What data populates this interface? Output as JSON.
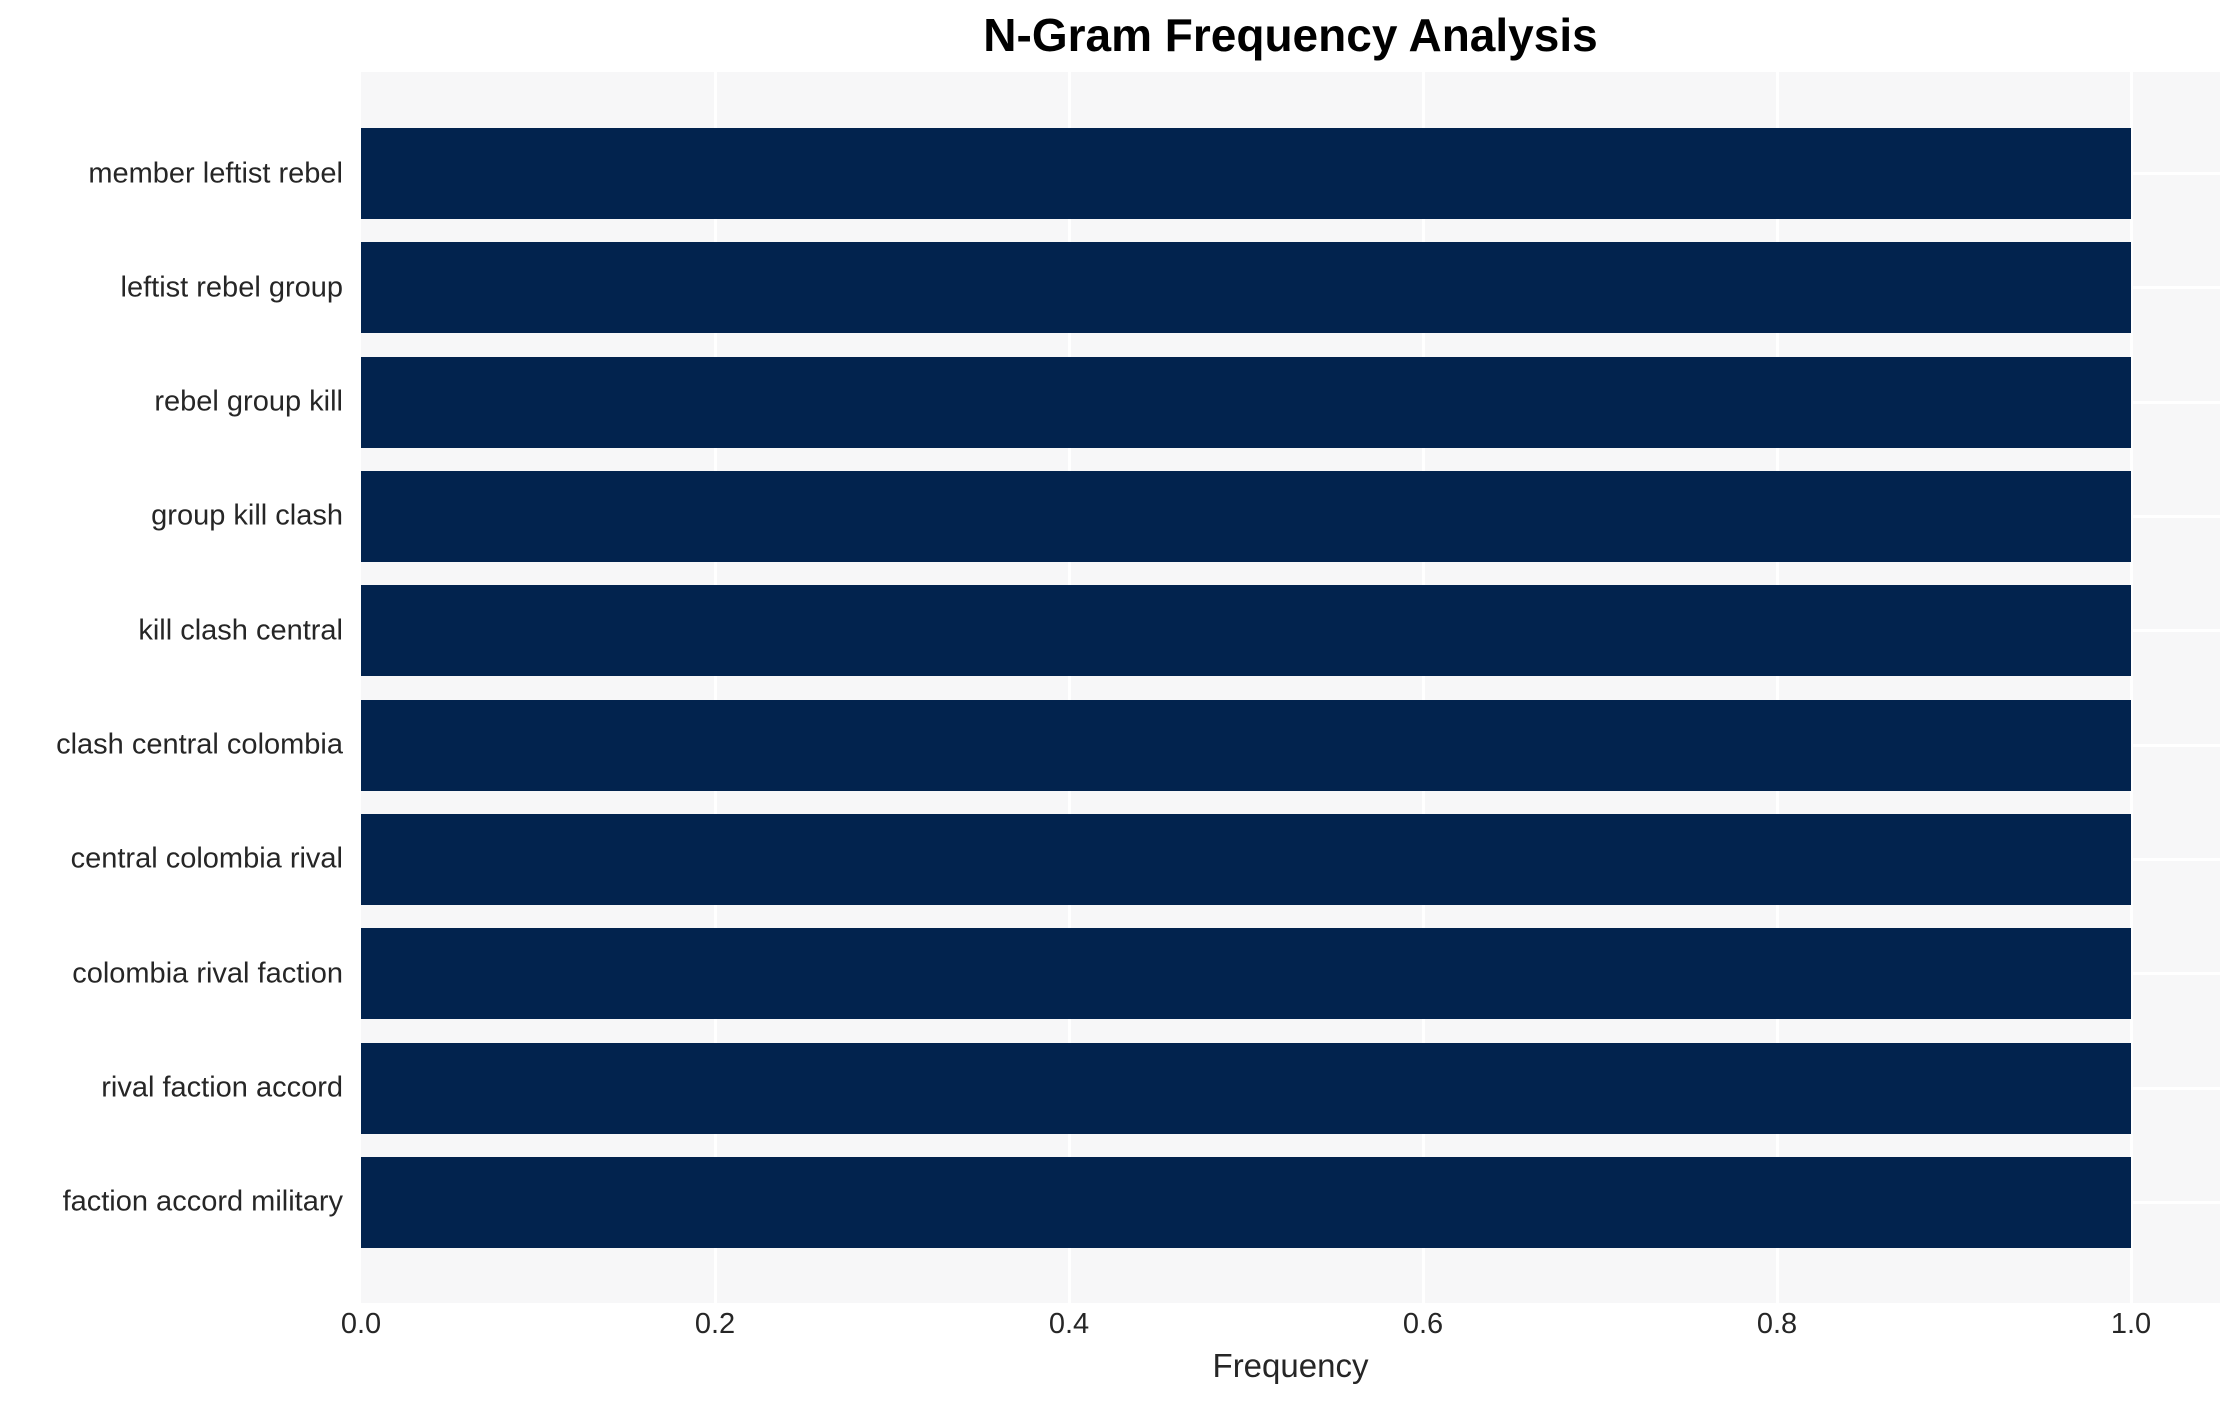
{
  "chart_data": {
    "type": "bar",
    "orientation": "horizontal",
    "title": "N-Gram Frequency Analysis",
    "xlabel": "Frequency",
    "ylabel": "",
    "categories": [
      "member leftist rebel",
      "leftist rebel group",
      "rebel group kill",
      "group kill clash",
      "kill clash central",
      "clash central colombia",
      "central colombia rival",
      "colombia rival faction",
      "rival faction accord",
      "faction accord military"
    ],
    "values": [
      1.0,
      1.0,
      1.0,
      1.0,
      1.0,
      1.0,
      1.0,
      1.0,
      1.0,
      1.0
    ],
    "xtick_labels": [
      "0.0",
      "0.2",
      "0.4",
      "0.6",
      "0.8",
      "1.0"
    ],
    "xtick_values": [
      0.0,
      0.2,
      0.4,
      0.6,
      0.8,
      1.0
    ],
    "xlim": [
      0.0,
      1.05
    ],
    "grid": true,
    "legend": false,
    "colors": {
      "bar": "#02234e",
      "plot_background": "#f7f7f8",
      "figure_background": "#ffffff",
      "gridline": "#ffffff",
      "tick_text": "#262626",
      "title_text": "#000000"
    }
  }
}
